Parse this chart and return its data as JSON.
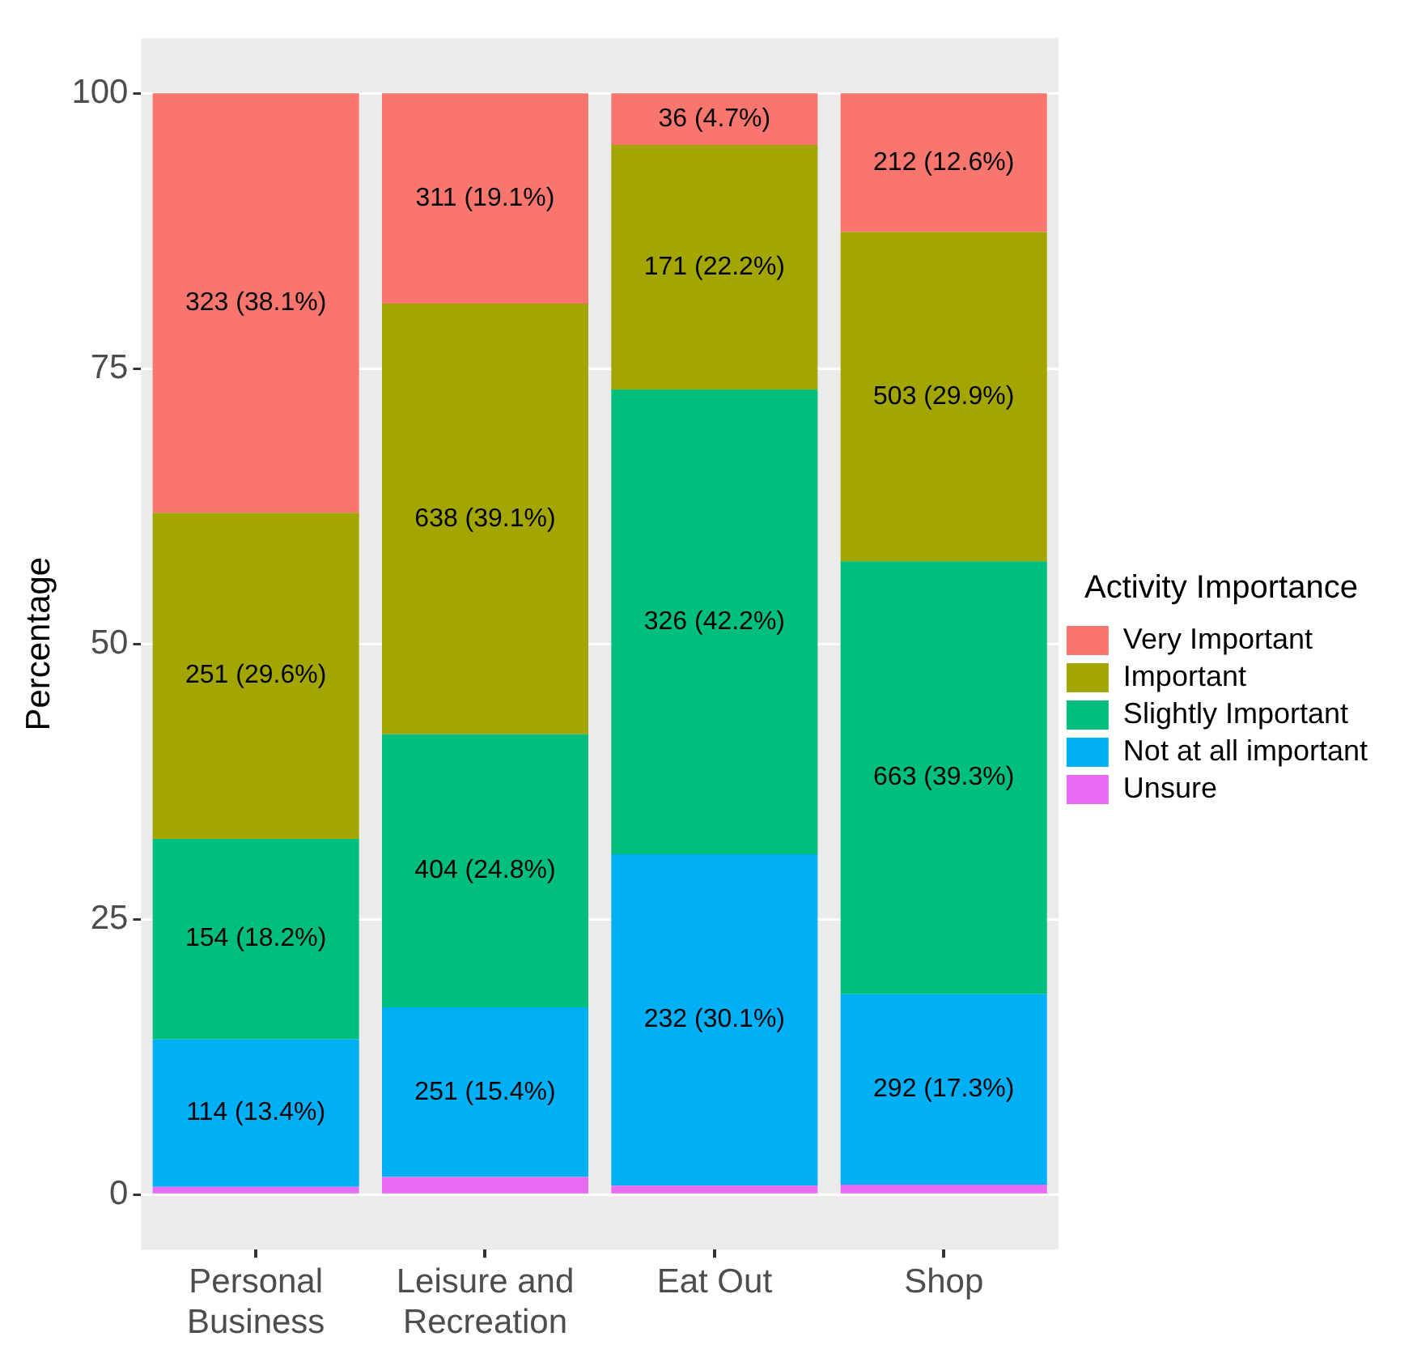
{
  "chart_data": {
    "type": "bar",
    "stacked": true,
    "ylabel": "Percentage",
    "legend_title": "Activity Importance",
    "legend": "right",
    "grid": true,
    "categories": [
      "Personal Business",
      "Leisure and Recreation",
      "Eat Out",
      "Shop"
    ],
    "ylim": [
      -5,
      105
    ],
    "yticks": [
      0,
      25,
      50,
      75,
      100
    ],
    "series": [
      {
        "name": "Unsure",
        "color": "#e76bf3",
        "values": [
          0.7,
          1.6,
          0.8,
          0.9
        ],
        "value_labels": [
          null,
          null,
          null,
          null
        ]
      },
      {
        "name": "Not at all important",
        "color": "#00b0f6",
        "values": [
          13.4,
          15.4,
          30.1,
          17.3
        ],
        "value_labels": [
          "114 (13.4%)",
          "251 (15.4%)",
          "232 (30.1%)",
          "292 (17.3%)"
        ]
      },
      {
        "name": "Slightly Important",
        "color": "#00bf7d",
        "values": [
          18.2,
          24.8,
          42.2,
          39.3
        ],
        "value_labels": [
          "154 (18.2%)",
          "404 (24.8%)",
          "326 (42.2%)",
          "663 (39.3%)"
        ]
      },
      {
        "name": "Important",
        "color": "#a3a500",
        "values": [
          29.6,
          39.1,
          22.2,
          29.9
        ],
        "value_labels": [
          "251 (29.6%)",
          "638 (39.1%)",
          "171 (22.2%)",
          "503 (29.9%)"
        ]
      },
      {
        "name": "Very Important",
        "color": "#f8766d",
        "values": [
          38.1,
          19.1,
          4.7,
          12.6
        ],
        "value_labels": [
          "323 (38.1%)",
          "311 (19.1%)",
          "36 (4.7%)",
          "212 (12.6%)"
        ]
      }
    ]
  }
}
